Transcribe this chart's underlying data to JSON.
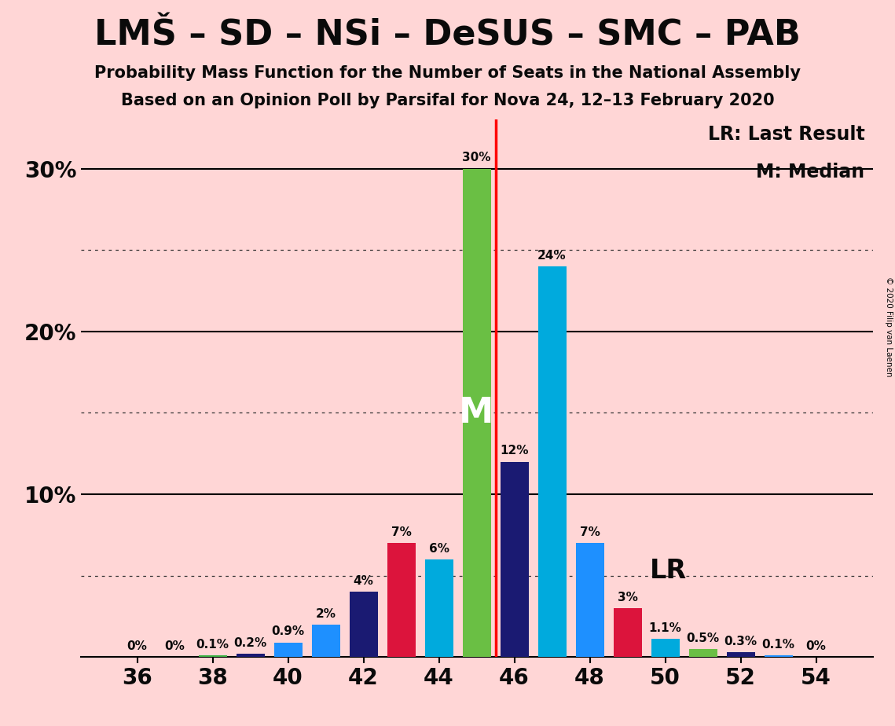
{
  "title": "LMŠ – SD – NSi – DeSUS – SMC – PAB",
  "subtitle1": "Probability Mass Function for the Number of Seats in the National Assembly",
  "subtitle2": "Based on an Opinion Poll by Parsifal for Nova 24, 12–13 February 2020",
  "copyright": "© 2020 Filip van Laenen",
  "seats": [
    36,
    37,
    38,
    39,
    40,
    41,
    42,
    43,
    44,
    45,
    46,
    47,
    48,
    49,
    50,
    51,
    52,
    53,
    54
  ],
  "probs": [
    0.0,
    0.0,
    0.1,
    0.2,
    0.9,
    2.0,
    4.0,
    7.0,
    6.0,
    30.0,
    12.0,
    24.0,
    7.0,
    3.0,
    1.1,
    0.5,
    0.3,
    0.1,
    0.0
  ],
  "colors": [
    "#1e90ff",
    "#1e90ff",
    "#3cb044",
    "#1a1a72",
    "#1e90ff",
    "#1e90ff",
    "#1a1a72",
    "#dc143c",
    "#00aadd",
    "#6abf44",
    "#1a1a72",
    "#00aadd",
    "#1e90ff",
    "#dc143c",
    "#00aadd",
    "#6abf44",
    "#1a1a72",
    "#1e90ff",
    "#1e90ff"
  ],
  "labels": [
    "0%",
    "0%",
    "0.1%",
    "0.2%",
    "0.9%",
    "2%",
    "4%",
    "7%",
    "6%",
    "30%",
    "12%",
    "24%",
    "7%",
    "3%",
    "1.1%",
    "0.5%",
    "0.3%",
    "0.1%",
    "0%"
  ],
  "median_seat": 45,
  "lr_seat": 49,
  "median_line_x": 45.5,
  "background_color": "#ffd6d6",
  "ylim": [
    0,
    33
  ],
  "xlim": [
    34.5,
    55.5
  ],
  "ytick_vals": [
    10,
    20,
    30
  ],
  "ytick_labels": [
    "10%",
    "20%",
    "30%"
  ],
  "xtick_vals": [
    36,
    38,
    40,
    42,
    44,
    46,
    48,
    50,
    52,
    54
  ],
  "solid_lines": [
    10,
    20,
    30
  ],
  "dotted_lines": [
    5,
    15,
    25
  ],
  "bar_width": 0.75,
  "title_fontsize": 32,
  "subtitle_fontsize": 15,
  "tick_fontsize": 20,
  "label_fontsize": 11,
  "legend_fontsize": 17
}
